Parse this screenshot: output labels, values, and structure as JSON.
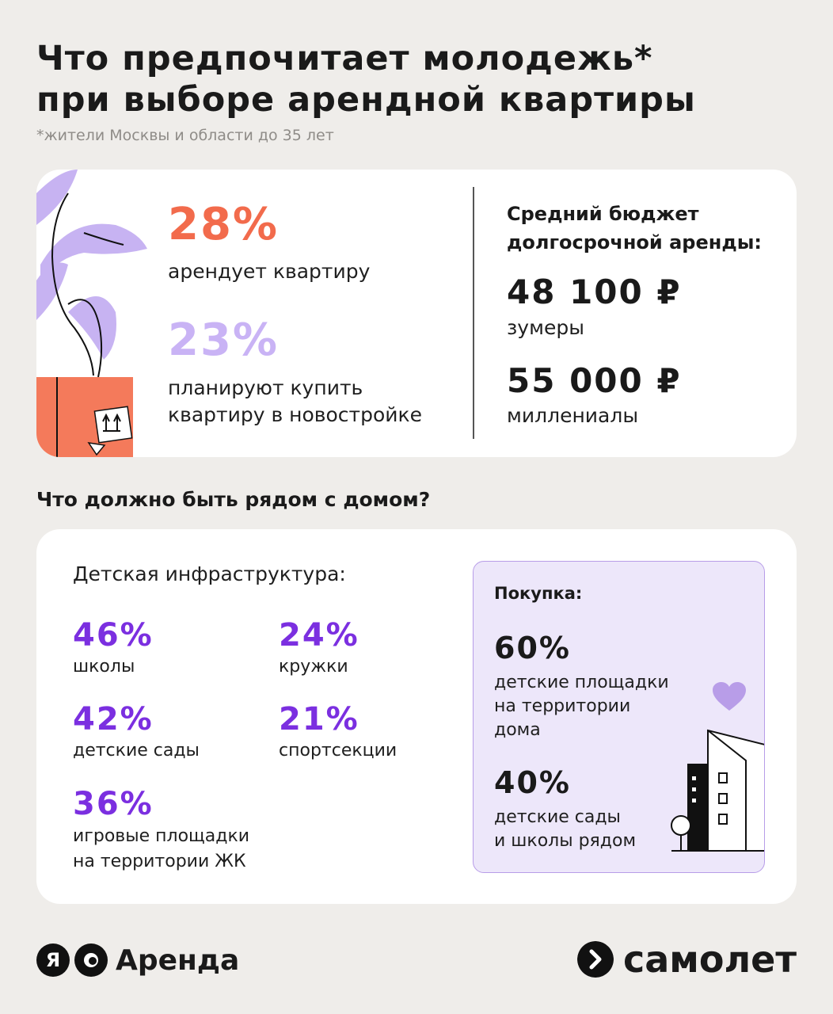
{
  "title": {
    "line1": "Что предпочитает молодежь*",
    "line2": "при выборе арендной квартиры"
  },
  "footnote": "*жители Москвы и области до 35 лет",
  "top_card": {
    "stat1": {
      "value": "28%",
      "label": "арендует квартиру",
      "color": "#f26b4c"
    },
    "stat2": {
      "value": "23%",
      "label_line1": "планируют купить",
      "label_line2": "квартиру в новостройке",
      "color": "#c9b3f5"
    },
    "budget": {
      "title_line1": "Средний бюджет",
      "title_line2": "долгосрочной аренды:",
      "items": [
        {
          "amount": "48 100 ₽",
          "label": "зумеры"
        },
        {
          "amount": "55 000 ₽",
          "label": "миллениалы"
        }
      ]
    }
  },
  "section_title": "Что должно быть рядом с домом?",
  "bottom_card": {
    "infra_title": "Детская инфраструктура:",
    "stats": [
      {
        "value": "46%",
        "label": "школы"
      },
      {
        "value": "24%",
        "label": "кружки"
      },
      {
        "value": "42%",
        "label": "детские сады"
      },
      {
        "value": "21%",
        "label": "спортсекции"
      },
      {
        "value": "36%",
        "label_line1": "игровые площадки",
        "label_line2": "на территории ЖК"
      }
    ],
    "purchase": {
      "title": "Покупка:",
      "items": [
        {
          "value": "60%",
          "label_line1": "детские площадки",
          "label_line2": "на территории",
          "label_line3": "дома"
        },
        {
          "value": "40%",
          "label_line1": "детские сады",
          "label_line2": "и школы рядом"
        }
      ]
    },
    "accent_color": "#7b2fe0"
  },
  "footer": {
    "left_logo_mark": "Я",
    "left_logo_text": "Аренда",
    "right_logo_text": "самолет"
  }
}
